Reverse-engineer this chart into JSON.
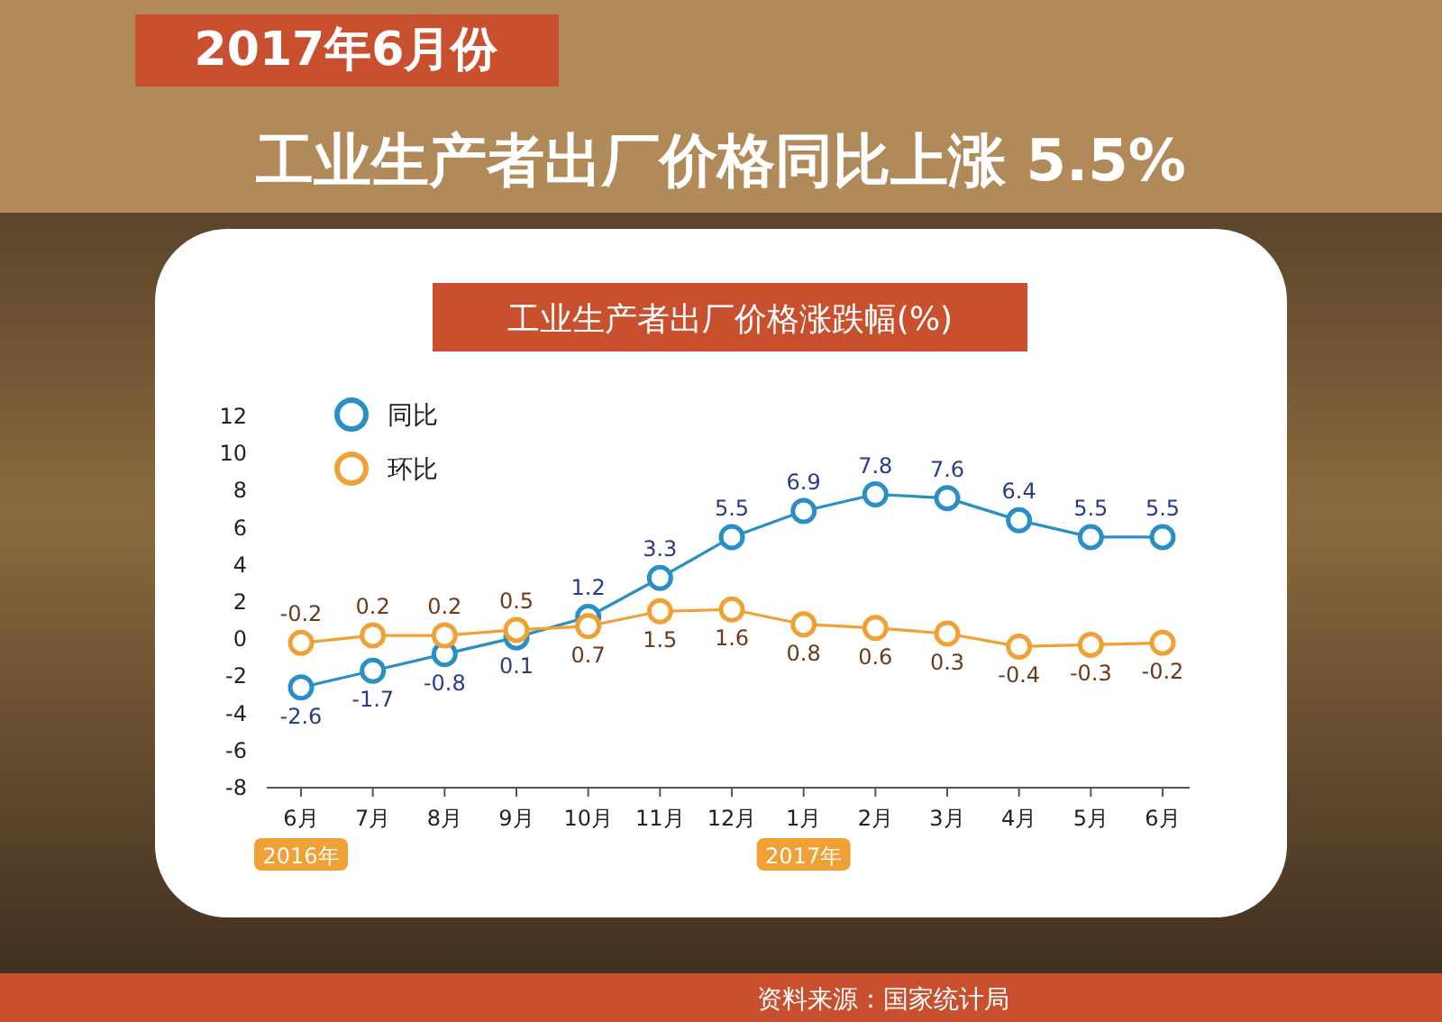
{
  "chart_data": {
    "type": "line",
    "title": "工业生产者出厂价格涨跌幅(%)",
    "categories": [
      "6月",
      "7月",
      "8月",
      "9月",
      "10月",
      "11月",
      "12月",
      "1月",
      "2月",
      "3月",
      "4月",
      "5月",
      "6月"
    ],
    "series": [
      {
        "name": "同比",
        "color": "#2a8fc4",
        "values": [
          -2.6,
          -1.7,
          -0.8,
          0.1,
          1.2,
          3.3,
          5.5,
          6.9,
          7.8,
          7.6,
          6.4,
          5.5,
          5.5
        ]
      },
      {
        "name": "环比",
        "color": "#f0a035",
        "values": [
          -0.2,
          0.2,
          0.2,
          0.5,
          0.7,
          1.5,
          1.6,
          0.8,
          0.6,
          0.3,
          -0.4,
          -0.3,
          -0.2
        ]
      }
    ],
    "ylim": [
      -8,
      12
    ],
    "yticks": [
      -8,
      -6,
      -4,
      -2,
      0,
      2,
      4,
      6,
      8,
      10,
      12
    ],
    "grid": false,
    "legend": "top left",
    "marker": "circle",
    "line_style": "solid",
    "data_labels": true,
    "annotations": [
      "2017年6月份",
      "工业生产者出厂价格同比上涨 5.5%",
      "资料来源：国家统计局",
      "2016年",
      "2017年"
    ]
  }
}
